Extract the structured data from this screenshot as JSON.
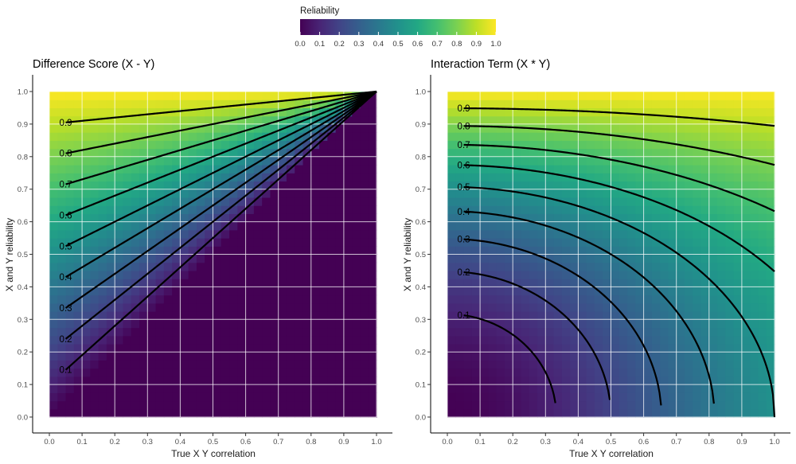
{
  "legend": {
    "title": "Reliability",
    "ticks": [
      "0.0",
      "0.1",
      "0.2",
      "0.3",
      "0.4",
      "0.5",
      "0.6",
      "0.7",
      "0.8",
      "0.9",
      "1.0"
    ],
    "colormap": [
      "#440154",
      "#482475",
      "#414487",
      "#355f8d",
      "#2a788e",
      "#21918c",
      "#22a884",
      "#44bf70",
      "#7ad151",
      "#bddf26",
      "#fde725"
    ]
  },
  "chart_data": [
    {
      "type": "heatmap",
      "title": "Difference Score (X - Y)",
      "xlabel": "True X Y correlation",
      "ylabel": "X and Y reliability",
      "xlim": [
        0,
        1
      ],
      "ylim": [
        0,
        1
      ],
      "xticks": [
        "0.0",
        "0.1",
        "0.2",
        "0.3",
        "0.4",
        "0.5",
        "0.6",
        "0.7",
        "0.8",
        "0.9",
        "1.0"
      ],
      "yticks": [
        "0.0",
        "0.1",
        "0.2",
        "0.3",
        "0.4",
        "0.5",
        "0.6",
        "0.7",
        "0.8",
        "0.9",
        "1.0"
      ],
      "grid": true,
      "fill_formula": "(reliability - correlation) / (1 - correlation)",
      "contour_levels": [
        0.1,
        0.2,
        0.3,
        0.4,
        0.5,
        0.6,
        0.7,
        0.8,
        0.9
      ],
      "contour_labels": [
        "0.1",
        "0.2",
        "0.3",
        "0.4",
        "0.5",
        "0.6",
        "0.7",
        "0.8",
        "0.9"
      ],
      "x_range": [
        0.05,
        1.0
      ]
    },
    {
      "type": "heatmap",
      "title": "Interaction Term (X * Y)",
      "xlabel": "True X Y correlation",
      "ylabel": "X and Y reliability",
      "xlim": [
        0,
        1
      ],
      "ylim": [
        0,
        1
      ],
      "xticks": [
        "0.0",
        "0.1",
        "0.2",
        "0.3",
        "0.4",
        "0.5",
        "0.6",
        "0.7",
        "0.8",
        "0.9",
        "1.0"
      ],
      "yticks": [
        "0.0",
        "0.1",
        "0.2",
        "0.3",
        "0.4",
        "0.5",
        "0.6",
        "0.7",
        "0.8",
        "0.9",
        "1.0"
      ],
      "grid": true,
      "fill_formula": "(reliability^2 + correlation^2) / (1 + correlation^2)",
      "contour_levels": [
        0.1,
        0.2,
        0.3,
        0.4,
        0.5,
        0.6,
        0.7,
        0.8,
        0.9
      ],
      "contour_labels": [
        "0.1",
        "0.2",
        "0.3",
        "0.4",
        "0.5",
        "0.6",
        "0.7",
        "0.8",
        "0.9"
      ],
      "x_range": [
        0.05,
        1.0
      ]
    }
  ]
}
